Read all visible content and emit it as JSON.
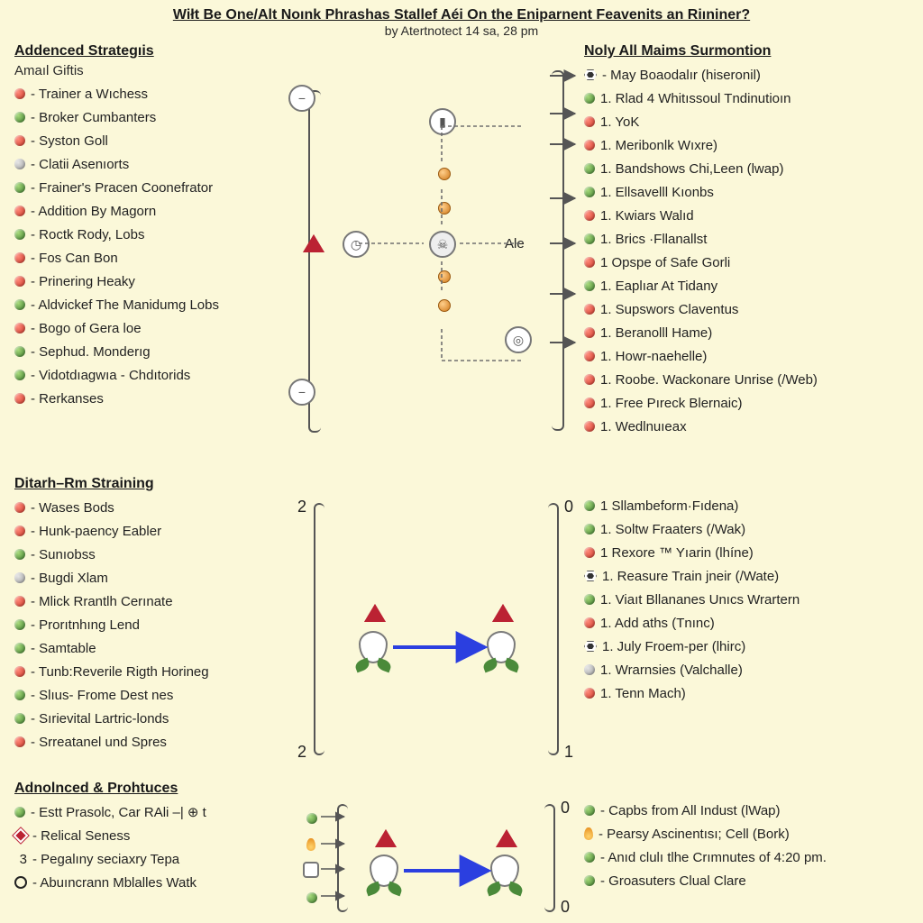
{
  "title": "Wiłt Be One/Alt Noınk Phrashas Stallef Aéi On the Eniparnent Feavenits an Riıniner?",
  "subtitle": "by Atertnotect 14 sa, 28 pm",
  "colors": {
    "background": "#fbf8d9",
    "text": "#1a1a1a",
    "connector": "#6f6f6f",
    "arrow_blue": "#2b3fe0",
    "bullet_red": "#c73224",
    "bullet_green": "#3a7a2a",
    "bullet_grey": "#9a9a9a",
    "bullet_orange": "#e08a2a",
    "emblem_red": "#b23030"
  },
  "section1": {
    "left_heading": "Addenced Strategıis",
    "left_subheading": "Amaıl Giftis",
    "right_heading": "Noly All Maims Surmontion",
    "right_lead": "- May Boaodalır (hiseronil)",
    "mid_label": "Ale",
    "left_items": [
      {
        "b": "red",
        "t": "- Trainer a Wıchess"
      },
      {
        "b": "green",
        "t": "- Broker Cumbanters"
      },
      {
        "b": "red",
        "t": "- Syston Goll"
      },
      {
        "b": "grey",
        "t": "- Clatii Asenıorts"
      },
      {
        "b": "green",
        "t": "- Frainer's Pracen Coonefrator"
      },
      {
        "b": "red",
        "t": "- Addition By Magorn"
      },
      {
        "b": "green",
        "t": "- Roctk Rody, Lobs"
      },
      {
        "b": "red",
        "t": "- Fos Can Bon"
      },
      {
        "b": "red",
        "t": "- Prinering Heaky"
      },
      {
        "b": "green",
        "t": "- Aldvickef The Manidumg Lobs"
      },
      {
        "b": "red",
        "t": "- Bogo of Gera loe"
      },
      {
        "b": "green",
        "t": "- Sephud. Monderıg"
      },
      {
        "b": "green",
        "t": "- Vidotdıagwıa - Chdıtorids"
      },
      {
        "b": "red",
        "t": "- Rerkanses"
      }
    ],
    "right_items": [
      {
        "b": "green",
        "t": "1. Rlad 4 Whitıssoul Tndinutioın"
      },
      {
        "b": "red",
        "t": "1. YoK"
      },
      {
        "b": "red",
        "t": "1. Meribonlk Wıxre)"
      },
      {
        "b": "green",
        "t": "1. Bandshows Chi,Leen (lwap)"
      },
      {
        "b": "green",
        "t": "1. Ellsavelll Kıonbs"
      },
      {
        "b": "red",
        "t": "1. Kwiars Walıd"
      },
      {
        "b": "green",
        "t": "1. Brics ·Fllanallst"
      },
      {
        "b": "red",
        "t": "1  Opspe of Safe Gorli"
      },
      {
        "b": "green",
        "t": "1. Eaplıar At Tidany"
      },
      {
        "b": "red",
        "t": "1. Supswors Claventus"
      },
      {
        "b": "red",
        "t": "1. Beranolll Hame)"
      },
      {
        "b": "red",
        "t": "1. Howr-naehelle)"
      },
      {
        "b": "red",
        "t": "1. Roobe. Wackonare Unrise (/Web)"
      },
      {
        "b": "red",
        "t": "1. Free Pıreck Blernaic)"
      },
      {
        "b": "red",
        "t": "1. Wedlnuıeax"
      }
    ]
  },
  "section2": {
    "left_heading": "Ditarh–Rm Straining",
    "left_items": [
      {
        "b": "red",
        "t": "- Wases Bods"
      },
      {
        "b": "red",
        "t": "- Hunk-paency Eabler"
      },
      {
        "b": "green",
        "t": "- Sunıobss"
      },
      {
        "b": "grey",
        "t": "- Bugdi Xlam"
      },
      {
        "b": "red",
        "t": "- Mlick Rrantlh Cerınate"
      },
      {
        "b": "green",
        "t": "- Prorıtnhıng Lend"
      },
      {
        "b": "green",
        "t": "- Samtable"
      },
      {
        "b": "red",
        "t": "- Tunb:Reverile Rigth Horineg"
      },
      {
        "b": "green",
        "t": "- Slıus- Frome Dest nes"
      },
      {
        "b": "green",
        "t": "- Sırievital Lartric-londs"
      },
      {
        "b": "red",
        "t": "- Srreatanel und Spres"
      }
    ],
    "right_items": [
      {
        "b": "green",
        "t": "1  Sllambeform·Fıdena)"
      },
      {
        "b": "green",
        "t": "1. Soltw Fraaters (/Wak)"
      },
      {
        "b": "red",
        "t": "1  Rexore ™ Yıarin (lhíne)"
      },
      {
        "b": "hex",
        "t": "1. Reasure Train jneir (/Wate)"
      },
      {
        "b": "green",
        "t": "1. Viaıt Bllananes Unıcs Wrartern"
      },
      {
        "b": "red",
        "t": "1. Add aths (Tnınc)"
      },
      {
        "b": "hex",
        "t": "1.  July Froem-per (lhirc)"
      },
      {
        "b": "grey",
        "t": "1. Wrarnsies (Valchalle)"
      },
      {
        "b": "red",
        "t": "1. Tenn Mach)"
      }
    ],
    "nums": {
      "tl": "2",
      "bl": "2",
      "tr": "0",
      "br": "1"
    }
  },
  "section3": {
    "left_heading": "Adnolnced & Prohtuces",
    "left_items": [
      {
        "b": "green",
        "t": "- Estt Prasolc, Car RAli –| ⊕ t"
      },
      {
        "b": "diamond",
        "t": "- Relical Seness"
      },
      {
        "b": "n3",
        "t": "- Pegalıny seciaxry Tepa"
      },
      {
        "b": "ring",
        "t": "- Abuıncrann Mblalles Watk"
      }
    ],
    "right_items": [
      {
        "b": "green",
        "t": "- Capbs from All Indust (lWap)"
      },
      {
        "b": "flame",
        "t": "- Pearsy Ascinentısı; Cell (Bork)"
      },
      {
        "b": "green",
        "t": "- Anıd clulı tlhe Crımnutes of 4:20 pm."
      },
      {
        "b": "green",
        "t": "- Groasuters Clual Clare"
      }
    ],
    "nums": {
      "tr": "0",
      "br": "0"
    }
  }
}
